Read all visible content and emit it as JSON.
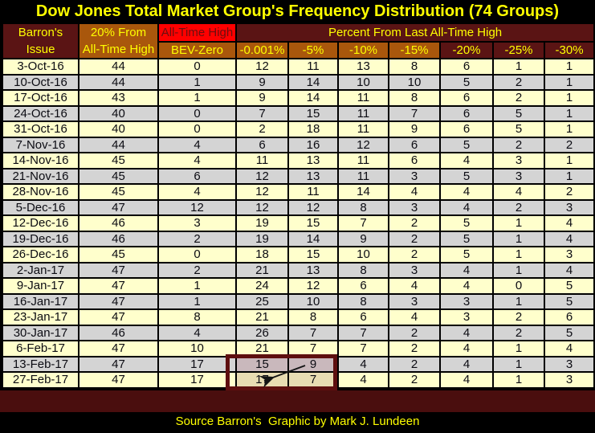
{
  "title": "Dow Jones Total Market Group's Frequency Distribution (74 Groups)",
  "footer": "Source Barron's  Graphic by Mark J. Lundeen",
  "colors": {
    "background": "#000000",
    "title_text": "#ffff00",
    "maroon_header": "#5a1414",
    "orange_header": "#a9570c",
    "red_cell": "#ff0000",
    "row_cream": "#ffffcc",
    "row_gray": "#d4d4d4",
    "highlight_border": "#5e0f0f",
    "highlight_tint_gray_row": "#c9b8bc",
    "highlight_tint_cream_row": "#e8dcb2",
    "bottom_band": "#4a0e0e"
  },
  "header": {
    "col1": [
      "Barron's",
      "Issue"
    ],
    "col2": [
      "20% From",
      "All-Time High"
    ],
    "all_time_high": "All-Time High",
    "bev_zero": "BEV-Zero",
    "percent_group": "Percent From Last All-Time High",
    "percent_cols": [
      "-0.001%",
      "-5%",
      "-10%",
      "-15%",
      "-20%",
      "-25%",
      "-30%"
    ]
  },
  "chart_data": {
    "type": "table",
    "title": "Dow Jones Total Market Group's Frequency Distribution (74 Groups)",
    "columns": [
      "Barron's Issue",
      "20% From All-Time High",
      "All-Time High BEV-Zero",
      "-0.001%",
      "-5%",
      "-10%",
      "-15%",
      "-20%",
      "-25%",
      "-30%"
    ],
    "rows": [
      [
        "3-Oct-16",
        44,
        0,
        12,
        11,
        13,
        8,
        6,
        1,
        1
      ],
      [
        "10-Oct-16",
        44,
        1,
        9,
        14,
        10,
        10,
        5,
        2,
        1
      ],
      [
        "17-Oct-16",
        43,
        1,
        9,
        14,
        11,
        8,
        6,
        2,
        1
      ],
      [
        "24-Oct-16",
        40,
        0,
        7,
        15,
        11,
        7,
        6,
        5,
        1
      ],
      [
        "31-Oct-16",
        40,
        0,
        2,
        18,
        11,
        9,
        6,
        5,
        1
      ],
      [
        "7-Nov-16",
        44,
        4,
        6,
        16,
        12,
        6,
        5,
        2,
        2
      ],
      [
        "14-Nov-16",
        45,
        4,
        11,
        13,
        11,
        6,
        4,
        3,
        1
      ],
      [
        "21-Nov-16",
        45,
        6,
        12,
        13,
        11,
        3,
        5,
        3,
        1
      ],
      [
        "28-Nov-16",
        45,
        4,
        12,
        11,
        14,
        4,
        4,
        4,
        2
      ],
      [
        "5-Dec-16",
        47,
        12,
        12,
        12,
        8,
        3,
        4,
        2,
        3
      ],
      [
        "12-Dec-16",
        46,
        3,
        19,
        15,
        7,
        2,
        5,
        1,
        4
      ],
      [
        "19-Dec-16",
        46,
        2,
        19,
        14,
        9,
        2,
        5,
        1,
        4
      ],
      [
        "26-Dec-16",
        45,
        0,
        18,
        15,
        10,
        2,
        5,
        1,
        3
      ],
      [
        "2-Jan-17",
        47,
        2,
        21,
        13,
        8,
        3,
        4,
        1,
        4
      ],
      [
        "9-Jan-17",
        47,
        1,
        24,
        12,
        6,
        4,
        4,
        0,
        5
      ],
      [
        "16-Jan-17",
        47,
        1,
        25,
        10,
        8,
        3,
        3,
        1,
        5
      ],
      [
        "23-Jan-17",
        47,
        8,
        21,
        8,
        6,
        4,
        3,
        2,
        6
      ],
      [
        "30-Jan-17",
        46,
        4,
        26,
        7,
        7,
        2,
        4,
        2,
        5
      ],
      [
        "6-Feb-17",
        47,
        10,
        21,
        7,
        7,
        2,
        4,
        1,
        4
      ],
      [
        "13-Feb-17",
        47,
        17,
        15,
        9,
        4,
        2,
        4,
        1,
        3
      ],
      [
        "27-Feb-17",
        47,
        17,
        17,
        7,
        4,
        2,
        4,
        1,
        3
      ]
    ],
    "annotations": [
      {
        "kind": "highlight-box",
        "note": "Dark red box outlining columns -0.001% and -5% for rows 13-Feb-17 and 27-Feb-17, with hand-drawn arrow pointing from the 9 toward the 17"
      }
    ],
    "layout": {
      "row_striping": [
        "cream",
        "gray"
      ],
      "grid": true,
      "legend": "none"
    }
  }
}
